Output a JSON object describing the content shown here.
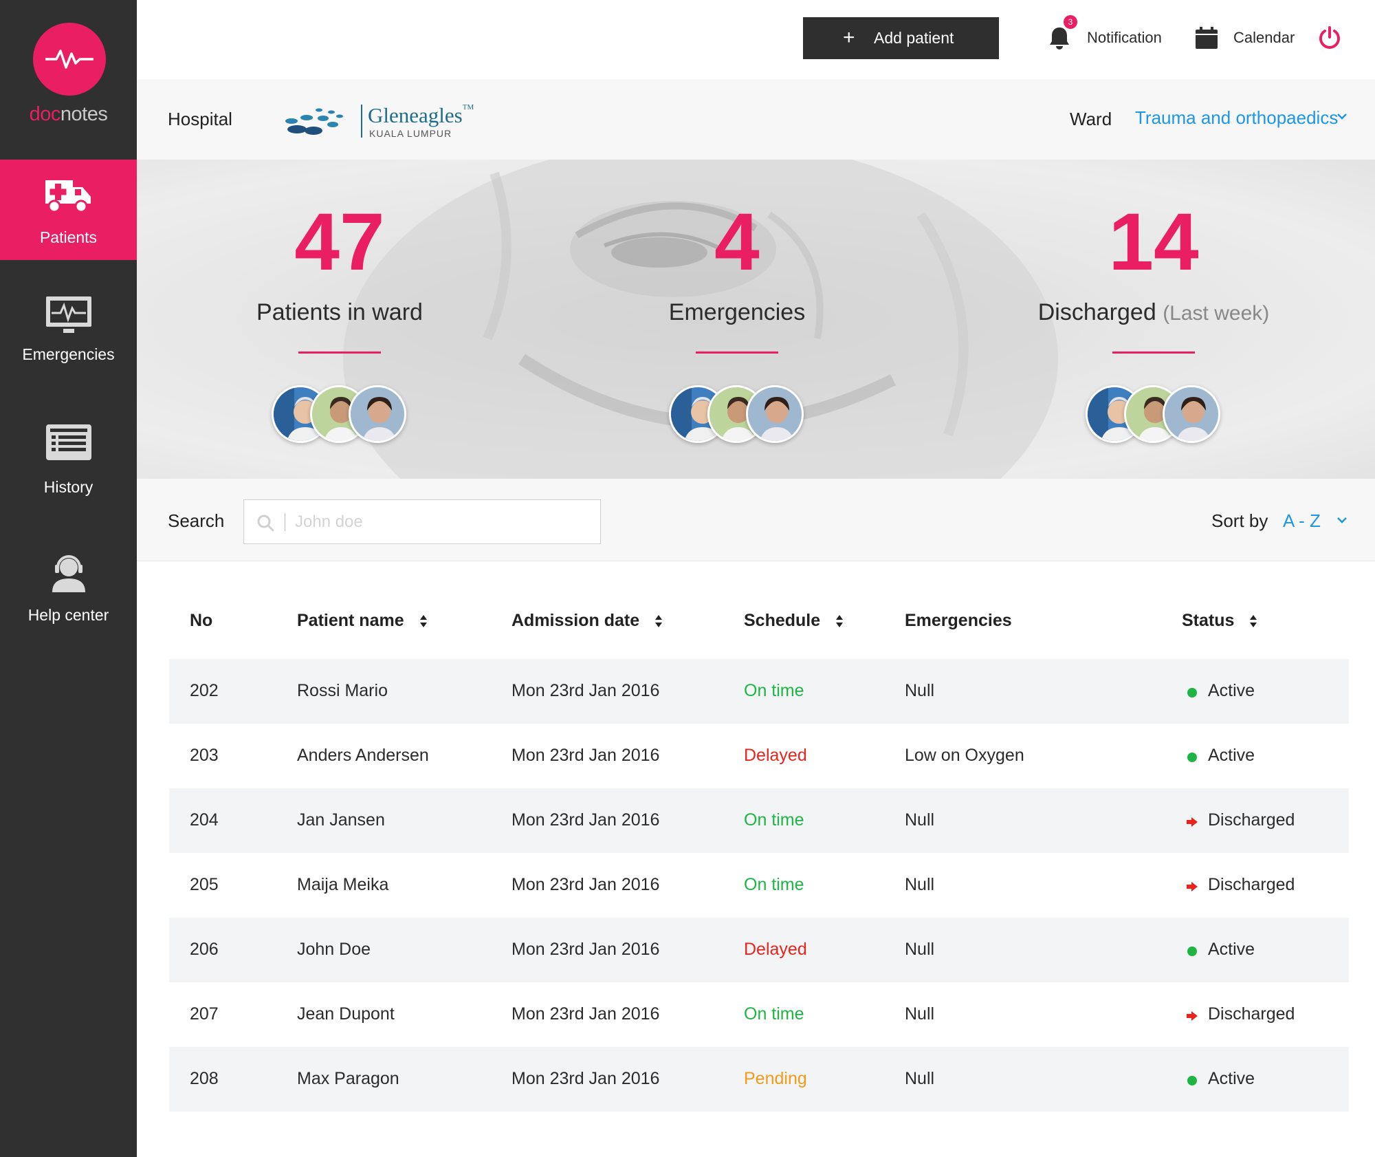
{
  "brand": {
    "name_part1": "doc",
    "name_part2": "notes"
  },
  "sidebar": {
    "items": [
      {
        "label": "Patients",
        "icon": "ambulance-icon",
        "active": true
      },
      {
        "label": "Emergencies",
        "icon": "monitor-heartbeat-icon",
        "active": false
      },
      {
        "label": "History",
        "icon": "list-icon",
        "active": false
      },
      {
        "label": "Help center",
        "icon": "headset-user-icon",
        "active": false
      }
    ]
  },
  "topbar": {
    "add_patient": "Add patient",
    "notification": "Notification",
    "notification_count": "3",
    "calendar": "Calendar",
    "power_icon": "power-icon"
  },
  "hospital": {
    "label": "Hospital",
    "logo_name": "Gleneagles",
    "logo_tm": "TM",
    "logo_sub": "KUALA LUMPUR",
    "ward_label": "Ward",
    "ward_value": "Trauma and orthopaedics"
  },
  "stats": [
    {
      "value": "47",
      "label": "Patients in ward",
      "sub": ""
    },
    {
      "value": "4",
      "label": "Emergencies",
      "sub": ""
    },
    {
      "value": "14",
      "label": "Discharged",
      "sub": "(Last week)"
    }
  ],
  "search": {
    "label": "Search",
    "placeholder": "John doe",
    "value": "",
    "sort_label": "Sort by",
    "sort_value": "A - Z"
  },
  "table": {
    "columns": [
      "No",
      "Patient name",
      "Admission date",
      "Schedule",
      "Emergencies",
      "Status"
    ],
    "rows": [
      {
        "no": "202",
        "name": "Rossi Mario",
        "date": "Mon 23rd Jan 2016",
        "schedule": "On time",
        "emergency": "Null",
        "status": "Active"
      },
      {
        "no": "203",
        "name": "Anders Andersen",
        "date": "Mon 23rd Jan 2016",
        "schedule": "Delayed",
        "emergency": "Low on Oxygen",
        "status": "Active"
      },
      {
        "no": "204",
        "name": "Jan Jansen",
        "date": "Mon 23rd Jan 2016",
        "schedule": "On time",
        "emergency": "Null",
        "status": "Discharged"
      },
      {
        "no": "205",
        "name": "Maija Meika",
        "date": "Mon 23rd Jan 2016",
        "schedule": "On time",
        "emergency": "Null",
        "status": "Discharged"
      },
      {
        "no": "206",
        "name": "John Doe",
        "date": "Mon 23rd Jan 2016",
        "schedule": "Delayed",
        "emergency": "Null",
        "status": "Active"
      },
      {
        "no": "207",
        "name": "Jean Dupont",
        "date": "Mon 23rd Jan 2016",
        "schedule": "On time",
        "emergency": "Null",
        "status": "Discharged"
      },
      {
        "no": "208",
        "name": "Max Paragon",
        "date": "Mon 23rd Jan 2016",
        "schedule": "Pending",
        "emergency": "Null",
        "status": "Active"
      }
    ]
  },
  "colors": {
    "accent": "#ea1e63",
    "sidebar": "#303030",
    "link": "#1e96e8",
    "on_time": "#1fb544",
    "delayed": "#e8241d",
    "pending": "#f39a1a",
    "active_dot": "#1fb544",
    "discharged_arrow": "#e8241d"
  }
}
